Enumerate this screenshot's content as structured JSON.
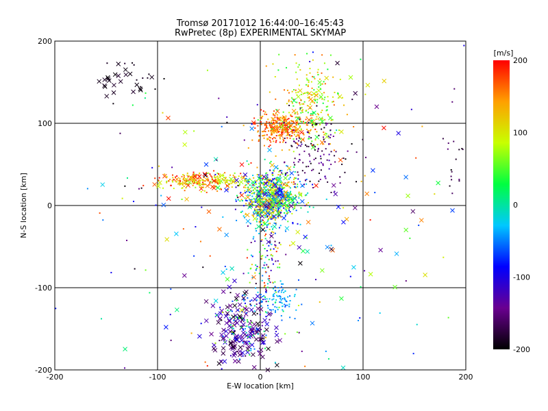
{
  "chart_data": {
    "type": "scatter",
    "title": "Tromsø 20171012 16:44:00–16:45:43",
    "subtitle": "RwPretec (8p) EXPERIMENTAL SKYMAP",
    "xlabel": "E-W location [km]",
    "ylabel": "N-S location [km]",
    "xlim": [
      -200,
      200
    ],
    "ylim": [
      -200,
      200
    ],
    "x_ticks": [
      "-200",
      "-100",
      "0",
      "100",
      "200"
    ],
    "y_ticks": [
      "-200",
      "-100",
      "0",
      "100",
      "200"
    ],
    "grid_lines": [
      -100,
      0,
      100
    ],
    "colorbar": {
      "unit": "[m/s]",
      "range": [
        -200,
        200
      ],
      "ticks": [
        "200",
        "100",
        "0",
        "-100",
        "-200"
      ],
      "colors": [
        "#000000",
        "#6a0090",
        "#0000ff",
        "#00c8ff",
        "#00ff40",
        "#c8ff00",
        "#ffa000",
        "#ff0000"
      ]
    },
    "clusters": [
      {
        "cx": 10,
        "cy": 10,
        "sx": 14,
        "sy": 16,
        "n": 700,
        "v": [
          -120,
          160
        ],
        "marker": "dot"
      },
      {
        "cx": 10,
        "cy": 10,
        "sx": 13,
        "sy": 14,
        "n": 120,
        "v": [
          -160,
          160
        ],
        "marker": "x"
      },
      {
        "cx": -55,
        "cy": 30,
        "sx": 22,
        "sy": 5,
        "n": 220,
        "v": [
          60,
          200
        ],
        "marker": "dot"
      },
      {
        "cx": -55,
        "cy": 28,
        "sx": 22,
        "sy": 5,
        "n": 35,
        "v": [
          60,
          200
        ],
        "marker": "x"
      },
      {
        "cx": 20,
        "cy": 95,
        "sx": 13,
        "sy": 9,
        "n": 260,
        "v": [
          120,
          200
        ],
        "marker": "dot"
      },
      {
        "cx": 22,
        "cy": 95,
        "sx": 12,
        "sy": 8,
        "n": 30,
        "v": [
          120,
          200
        ],
        "marker": "x"
      },
      {
        "cx": 50,
        "cy": 125,
        "sx": 15,
        "sy": 25,
        "n": 200,
        "v": [
          20,
          170
        ],
        "marker": "dot"
      },
      {
        "cx": 55,
        "cy": 120,
        "sx": 15,
        "sy": 22,
        "n": 25,
        "v": [
          20,
          170
        ],
        "marker": "x"
      },
      {
        "cx": 55,
        "cy": 65,
        "sx": 15,
        "sy": 25,
        "n": 130,
        "v": [
          -200,
          -120
        ],
        "marker": "dot"
      },
      {
        "cx": -20,
        "cy": -155,
        "sx": 14,
        "sy": 25,
        "n": 150,
        "v": [
          -200,
          -100
        ],
        "marker": "x"
      },
      {
        "cx": -15,
        "cy": -150,
        "sx": 15,
        "sy": 30,
        "n": 140,
        "v": [
          -200,
          80
        ],
        "marker": "dot"
      },
      {
        "cx": 18,
        "cy": -115,
        "sx": 10,
        "sy": 10,
        "n": 80,
        "v": [
          -70,
          -20
        ],
        "marker": "dot"
      },
      {
        "cx": 5,
        "cy": -60,
        "sx": 8,
        "sy": 25,
        "n": 110,
        "v": [
          -200,
          200
        ],
        "marker": "dot"
      },
      {
        "cx": -135,
        "cy": 150,
        "sx": 12,
        "sy": 10,
        "n": 22,
        "v": [
          -200,
          -180
        ],
        "marker": "x"
      },
      {
        "cx": -115,
        "cy": 165,
        "sx": 12,
        "sy": 20,
        "n": 12,
        "v": [
          -200,
          -180
        ],
        "marker": "dot"
      },
      {
        "cx": 190,
        "cy": 70,
        "sx": 6,
        "sy": 30,
        "n": 18,
        "v": [
          -200,
          -150
        ],
        "marker": "dot"
      },
      {
        "cx": 80,
        "cy": 0,
        "sx": 55,
        "sy": 90,
        "n": 50,
        "v": [
          -200,
          200
        ],
        "marker": "x"
      },
      {
        "cx": -60,
        "cy": -20,
        "sx": 60,
        "sy": 80,
        "n": 40,
        "v": [
          -200,
          200
        ],
        "marker": "x"
      },
      {
        "cx": 0,
        "cy": 0,
        "sx": 120,
        "sy": 120,
        "n": 150,
        "v": [
          -200,
          200
        ],
        "marker": "dot"
      }
    ]
  }
}
